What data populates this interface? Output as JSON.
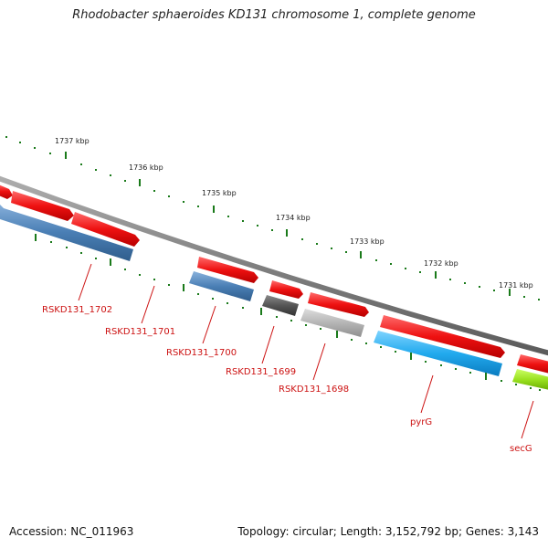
{
  "title": "Rhodobacter sphaeroides KD131 chromosome 1, complete genome",
  "footer": {
    "accession": "Accession: NC_011963",
    "stats": "Topology: circular; Length: 3,152,792 bp; Genes: 3,143"
  },
  "colors": {
    "forward_gene": "#ee1111",
    "backbone": "#888888",
    "tick": "#1a7a1a",
    "label": "#cc1111",
    "gene_blue": "#4a7fb5",
    "gene_cyan": "#22aaee",
    "gene_dark_gray": "#555555",
    "gene_light_gray": "#b5b5b5",
    "gene_green": "#99e01e"
  },
  "scale_labels": [
    "1737 kbp",
    "1736 kbp",
    "1735 kbp",
    "1734 kbp",
    "1733 kbp",
    "1732 kbp",
    "1731 kbp"
  ],
  "genes": [
    {
      "name": "RSKD131_1702",
      "strand": "reverse",
      "color": "gene_blue",
      "labeled": true
    },
    {
      "name": "RSKD131_1701",
      "strand": "forward",
      "color": "forward_gene",
      "labeled": true
    },
    {
      "name": "RSKD131_1700",
      "strand": "reverse",
      "color": "gene_blue",
      "labeled": true
    },
    {
      "name": "RSKD131_1699",
      "strand": "reverse",
      "color": "gene_dark_gray",
      "labeled": true
    },
    {
      "name": "RSKD131_1698",
      "strand": "reverse",
      "color": "gene_light_gray",
      "labeled": true
    },
    {
      "name": "pyrG",
      "strand": "reverse",
      "color": "gene_cyan",
      "labeled": true
    },
    {
      "name": "secG",
      "strand": "reverse",
      "color": "gene_green",
      "labeled": true
    }
  ]
}
